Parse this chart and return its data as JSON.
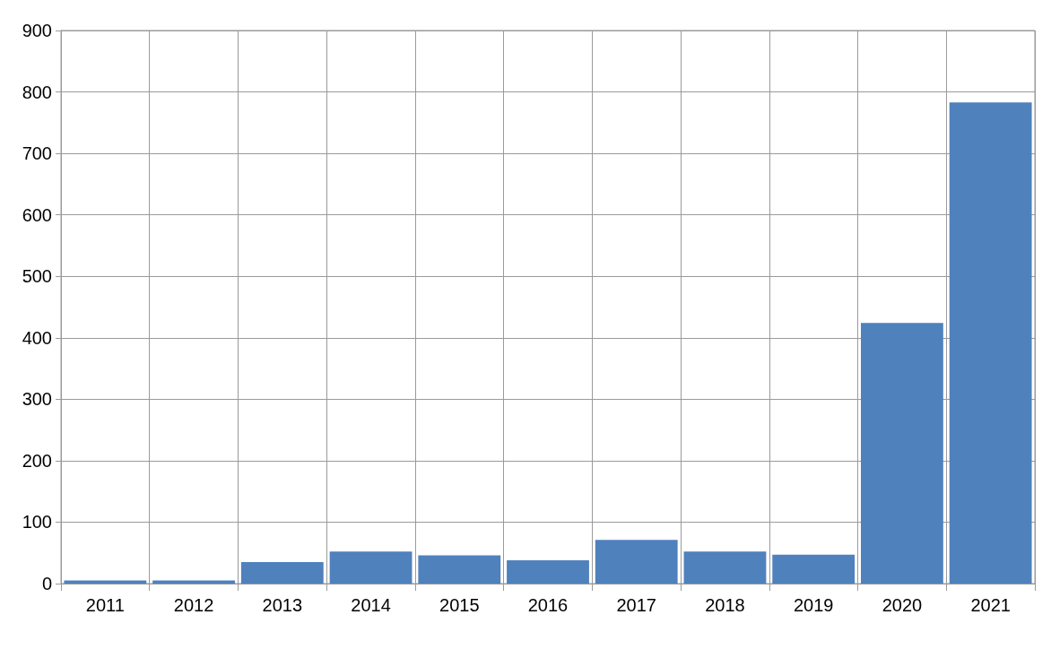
{
  "chart_data": {
    "type": "bar",
    "categories": [
      "2011",
      "2012",
      "2013",
      "2014",
      "2015",
      "2016",
      "2017",
      "2018",
      "2019",
      "2020",
      "2021"
    ],
    "values": [
      5,
      5,
      35,
      52,
      46,
      38,
      71,
      52,
      47,
      424,
      783
    ],
    "color": "#4f81bd",
    "ylim": [
      0,
      900
    ],
    "yticks": [
      0,
      100,
      200,
      300,
      400,
      500,
      600,
      700,
      800,
      900
    ],
    "grid": true
  }
}
